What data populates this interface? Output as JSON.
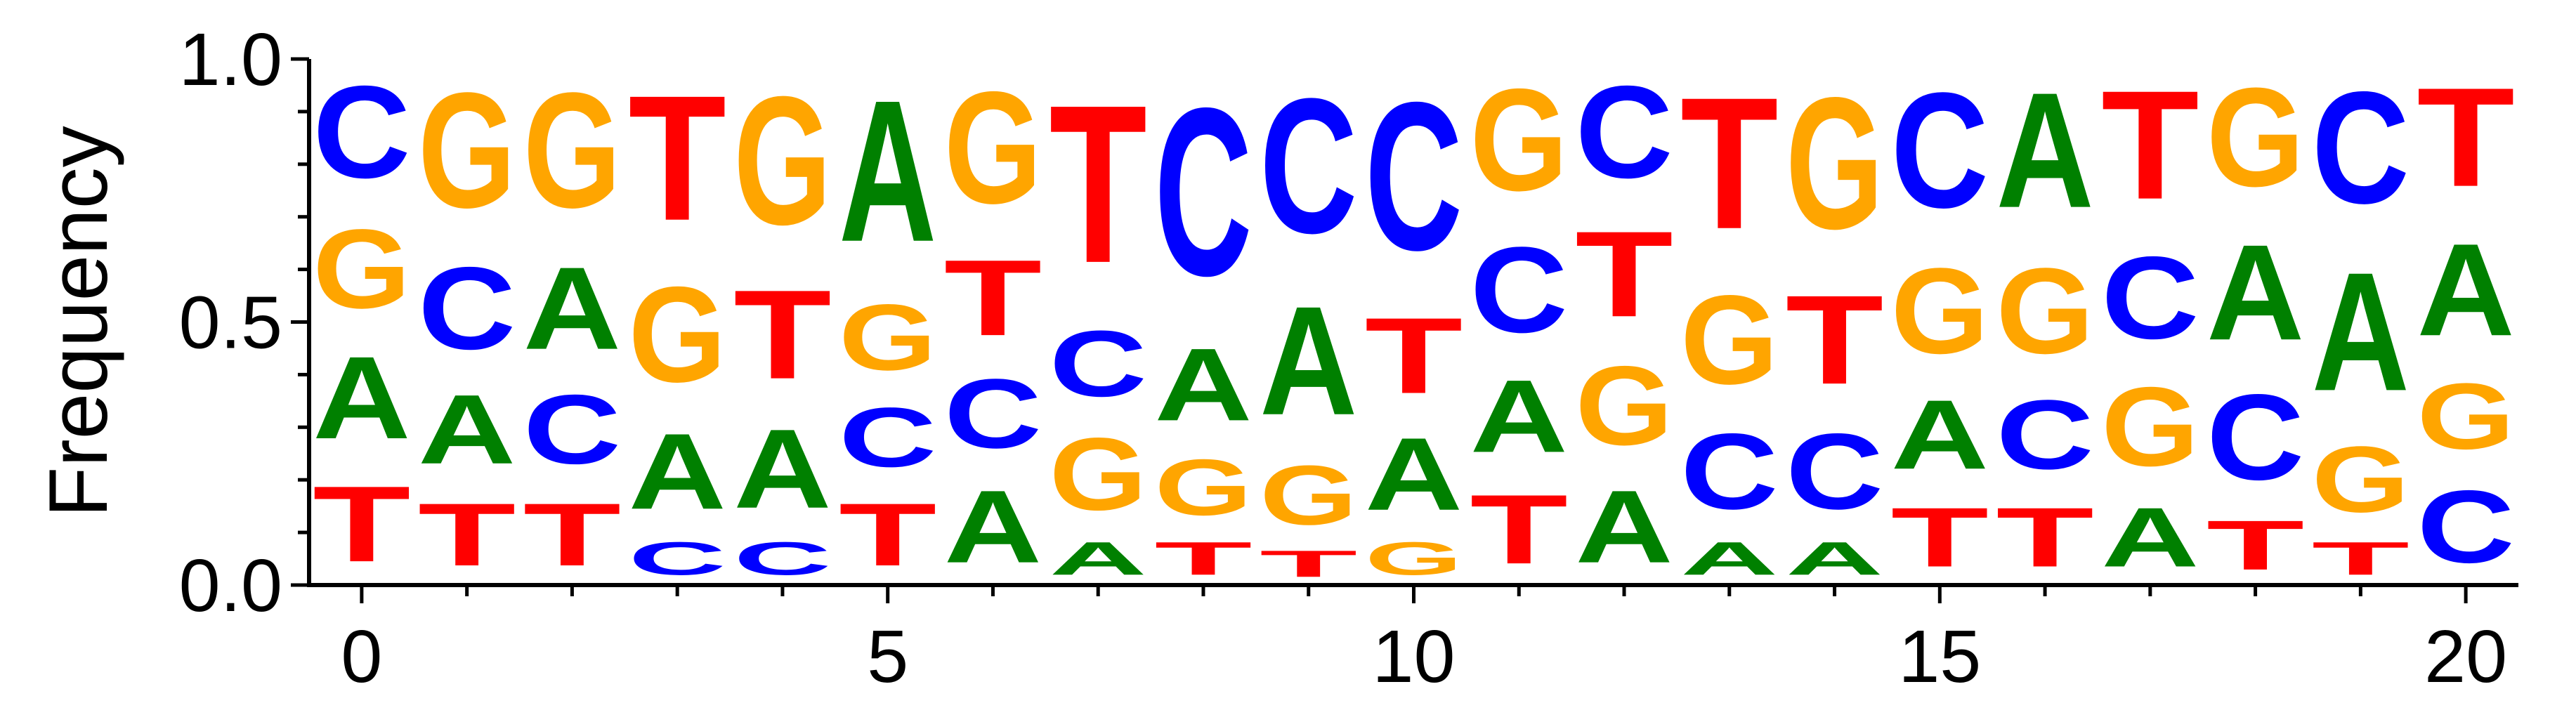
{
  "chart_data": {
    "type": "sequence-logo",
    "title": "",
    "xlabel": "",
    "ylabel": "Frequency",
    "ylim": [
      0,
      1
    ],
    "xlim": [
      -0.5,
      20.5
    ],
    "xticks": [
      0,
      5,
      10,
      15,
      20
    ],
    "yticks": [
      0,
      0.5,
      1
    ],
    "ytick_labels": [
      "0.0",
      "0.5",
      "1.0"
    ],
    "xtick_labels": [
      "0",
      "5",
      "10",
      "15",
      "20"
    ],
    "colors": {
      "A": "#008000",
      "C": "#0000ff",
      "G": "#ffa500",
      "T": "#ff0000"
    },
    "positions": [
      {
        "x": 0,
        "stack": [
          [
            "T",
            0.23
          ],
          [
            "A",
            0.25
          ],
          [
            "G",
            0.24
          ],
          [
            "C",
            0.28
          ]
        ]
      },
      {
        "x": 1,
        "stack": [
          [
            "T",
            0.19
          ],
          [
            "A",
            0.21
          ],
          [
            "C",
            0.25
          ],
          [
            "G",
            0.35
          ]
        ]
      },
      {
        "x": 2,
        "stack": [
          [
            "T",
            0.19
          ],
          [
            "C",
            0.21
          ],
          [
            "A",
            0.25
          ],
          [
            "G",
            0.35
          ]
        ]
      },
      {
        "x": 3,
        "stack": [
          [
            "C",
            0.1
          ],
          [
            "A",
            0.23
          ],
          [
            "G",
            0.29
          ],
          [
            "T",
            0.38
          ]
        ]
      },
      {
        "x": 4,
        "stack": [
          [
            "C",
            0.1
          ],
          [
            "A",
            0.24
          ],
          [
            "T",
            0.27
          ],
          [
            "G",
            0.39
          ]
        ]
      },
      {
        "x": 5,
        "stack": [
          [
            "T",
            0.19
          ],
          [
            "C",
            0.18
          ],
          [
            "G",
            0.2
          ],
          [
            "A",
            0.43
          ]
        ]
      },
      {
        "x": 6,
        "stack": [
          [
            "A",
            0.22
          ],
          [
            "C",
            0.21
          ],
          [
            "T",
            0.23
          ],
          [
            "G",
            0.34
          ]
        ]
      },
      {
        "x": 7,
        "stack": [
          [
            "A",
            0.1
          ],
          [
            "G",
            0.22
          ],
          [
            "C",
            0.2
          ],
          [
            "T",
            0.48
          ]
        ]
      },
      {
        "x": 8,
        "stack": [
          [
            "T",
            0.1
          ],
          [
            "G",
            0.17
          ],
          [
            "A",
            0.22
          ],
          [
            "C",
            0.51
          ]
        ]
      },
      {
        "x": 9,
        "stack": [
          [
            "T",
            0.08
          ],
          [
            "G",
            0.18
          ],
          [
            "A",
            0.33
          ],
          [
            "C",
            0.41
          ]
        ]
      },
      {
        "x": 10,
        "stack": [
          [
            "G",
            0.1
          ],
          [
            "A",
            0.22
          ],
          [
            "T",
            0.23
          ],
          [
            "C",
            0.45
          ]
        ]
      },
      {
        "x": 11,
        "stack": [
          [
            "T",
            0.21
          ],
          [
            "A",
            0.22
          ],
          [
            "C",
            0.26
          ],
          [
            "G",
            0.31
          ]
        ]
      },
      {
        "x": 12,
        "stack": [
          [
            "A",
            0.22
          ],
          [
            "G",
            0.24
          ],
          [
            "T",
            0.26
          ],
          [
            "C",
            0.28
          ]
        ]
      },
      {
        "x": 13,
        "stack": [
          [
            "A",
            0.1
          ],
          [
            "C",
            0.23
          ],
          [
            "G",
            0.27
          ],
          [
            "T",
            0.4
          ]
        ]
      },
      {
        "x": 14,
        "stack": [
          [
            "A",
            0.1
          ],
          [
            "C",
            0.23
          ],
          [
            "T",
            0.27
          ],
          [
            "G",
            0.4
          ]
        ]
      },
      {
        "x": 15,
        "stack": [
          [
            "T",
            0.18
          ],
          [
            "A",
            0.21
          ],
          [
            "G",
            0.26
          ],
          [
            "C",
            0.35
          ]
        ]
      },
      {
        "x": 16,
        "stack": [
          [
            "T",
            0.18
          ],
          [
            "C",
            0.21
          ],
          [
            "G",
            0.26
          ],
          [
            "A",
            0.35
          ]
        ]
      },
      {
        "x": 17,
        "stack": [
          [
            "A",
            0.18
          ],
          [
            "G",
            0.24
          ],
          [
            "C",
            0.25
          ],
          [
            "T",
            0.33
          ]
        ]
      },
      {
        "x": 18,
        "stack": [
          [
            "T",
            0.15
          ],
          [
            "C",
            0.26
          ],
          [
            "A",
            0.29
          ],
          [
            "G",
            0.3
          ]
        ]
      },
      {
        "x": 19,
        "stack": [
          [
            "T",
            0.1
          ],
          [
            "G",
            0.2
          ],
          [
            "A",
            0.36
          ],
          [
            "C",
            0.34
          ]
        ]
      },
      {
        "x": 20,
        "stack": [
          [
            "C",
            0.22
          ],
          [
            "G",
            0.2
          ],
          [
            "A",
            0.28
          ],
          [
            "T",
            0.3
          ]
        ]
      }
    ]
  }
}
